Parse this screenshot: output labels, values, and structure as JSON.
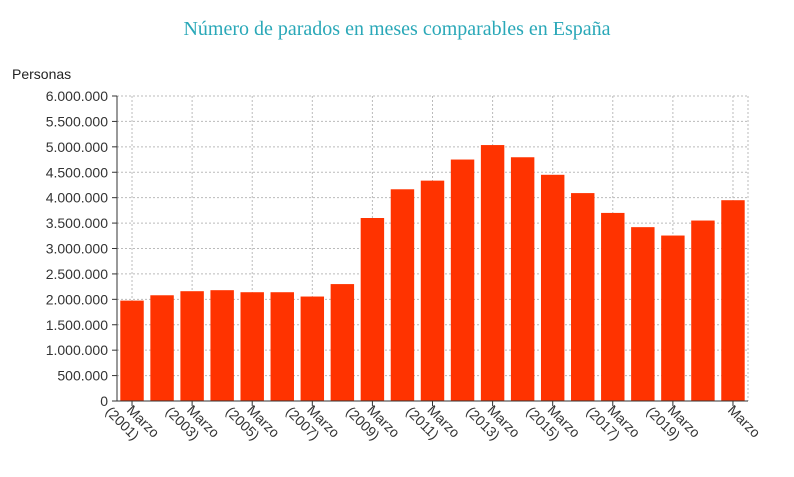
{
  "chart_data": {
    "type": "bar",
    "title": "Número de parados en meses comparables en España",
    "ylabel": "Personas",
    "xlabel": "",
    "ylim": [
      0,
      6000000
    ],
    "y_ticks": [
      {
        "value": 0,
        "label": "0"
      },
      {
        "value": 500000,
        "label": "500.000"
      },
      {
        "value": 1000000,
        "label": "1.000.000"
      },
      {
        "value": 1500000,
        "label": "1.500.000"
      },
      {
        "value": 2000000,
        "label": "2.000.000"
      },
      {
        "value": 2500000,
        "label": "2.500.000"
      },
      {
        "value": 3000000,
        "label": "3.000.000"
      },
      {
        "value": 3500000,
        "label": "3.500.000"
      },
      {
        "value": 4000000,
        "label": "4.000.000"
      },
      {
        "value": 4500000,
        "label": "4.500.000"
      },
      {
        "value": 5000000,
        "label": "5.000.000"
      },
      {
        "value": 5500000,
        "label": "5.500.000"
      },
      {
        "value": 6000000,
        "label": "6.000.000"
      }
    ],
    "x_tick_labels": [
      {
        "line1": "Marzo",
        "line2": "(2001)"
      },
      {
        "line1": "Marzo",
        "line2": "(2003)"
      },
      {
        "line1": "Marzo",
        "line2": "(2005)"
      },
      {
        "line1": "Marzo",
        "line2": "(2007)"
      },
      {
        "line1": "Marzo",
        "line2": "(2009)"
      },
      {
        "line1": "Marzo",
        "line2": "(2011)"
      },
      {
        "line1": "Marzo",
        "line2": "(2013)"
      },
      {
        "line1": "Marzo",
        "line2": "(2015)"
      },
      {
        "line1": "Marzo",
        "line2": "(2017)"
      },
      {
        "line1": "Marzo",
        "line2": "(2019)"
      },
      {
        "line1": "Marzo",
        "line2": ""
      }
    ],
    "values": [
      1975000,
      2080000,
      2160000,
      2180000,
      2140000,
      2140000,
      2055000,
      2300000,
      3600000,
      4165000,
      4335000,
      4750000,
      5035000,
      4795000,
      4450000,
      4090000,
      3700000,
      3420000,
      3255000,
      3550000,
      3950000
    ],
    "grid": true,
    "bar_color": "#ff3300",
    "grid_color": "#bbbbbb",
    "title_color": "#2aa8b8"
  }
}
